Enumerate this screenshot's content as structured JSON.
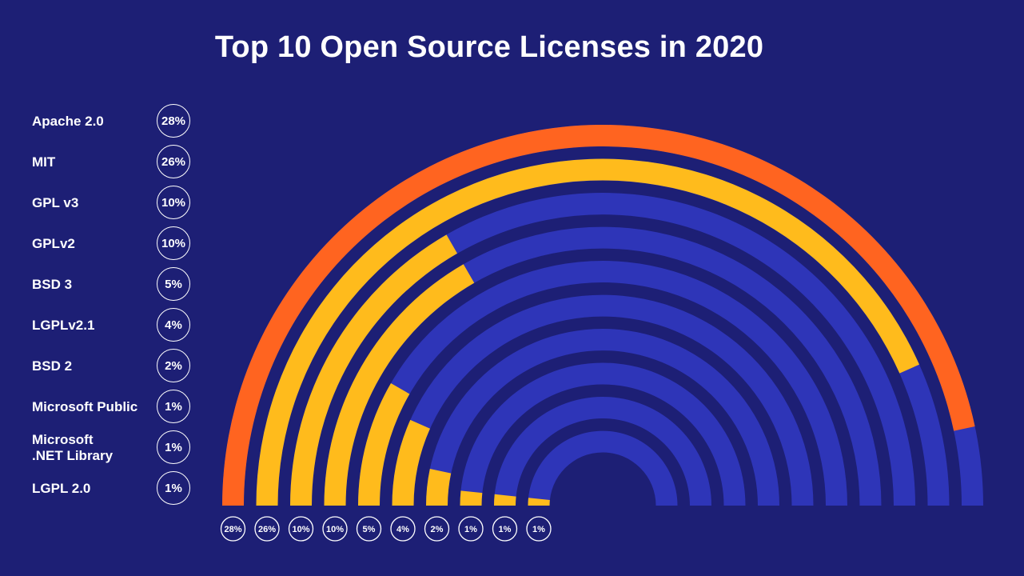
{
  "chart_data": {
    "type": "radial-bar",
    "title": "Top 10 Open Source Licenses in 2020",
    "categories": [
      "Apache 2.0",
      "MIT",
      "GPL v3",
      "GPLv2",
      "BSD 3",
      "LGPLv2.1",
      "BSD 2",
      "Microsoft Public",
      "Microsoft\n.NET Library",
      "LGPL 2.0"
    ],
    "values": [
      28,
      26,
      10,
      10,
      5,
      4,
      2,
      1,
      1,
      1
    ],
    "value_labels": [
      "28%",
      "26%",
      "10%",
      "10%",
      "5%",
      "4%",
      "2%",
      "1%",
      "1%",
      "1%"
    ],
    "scale_max": 30,
    "colors": {
      "background": "#1d1f75",
      "track": "#2e35b8",
      "highlight": "#ff6420",
      "fill": "#ffbb1c"
    }
  }
}
